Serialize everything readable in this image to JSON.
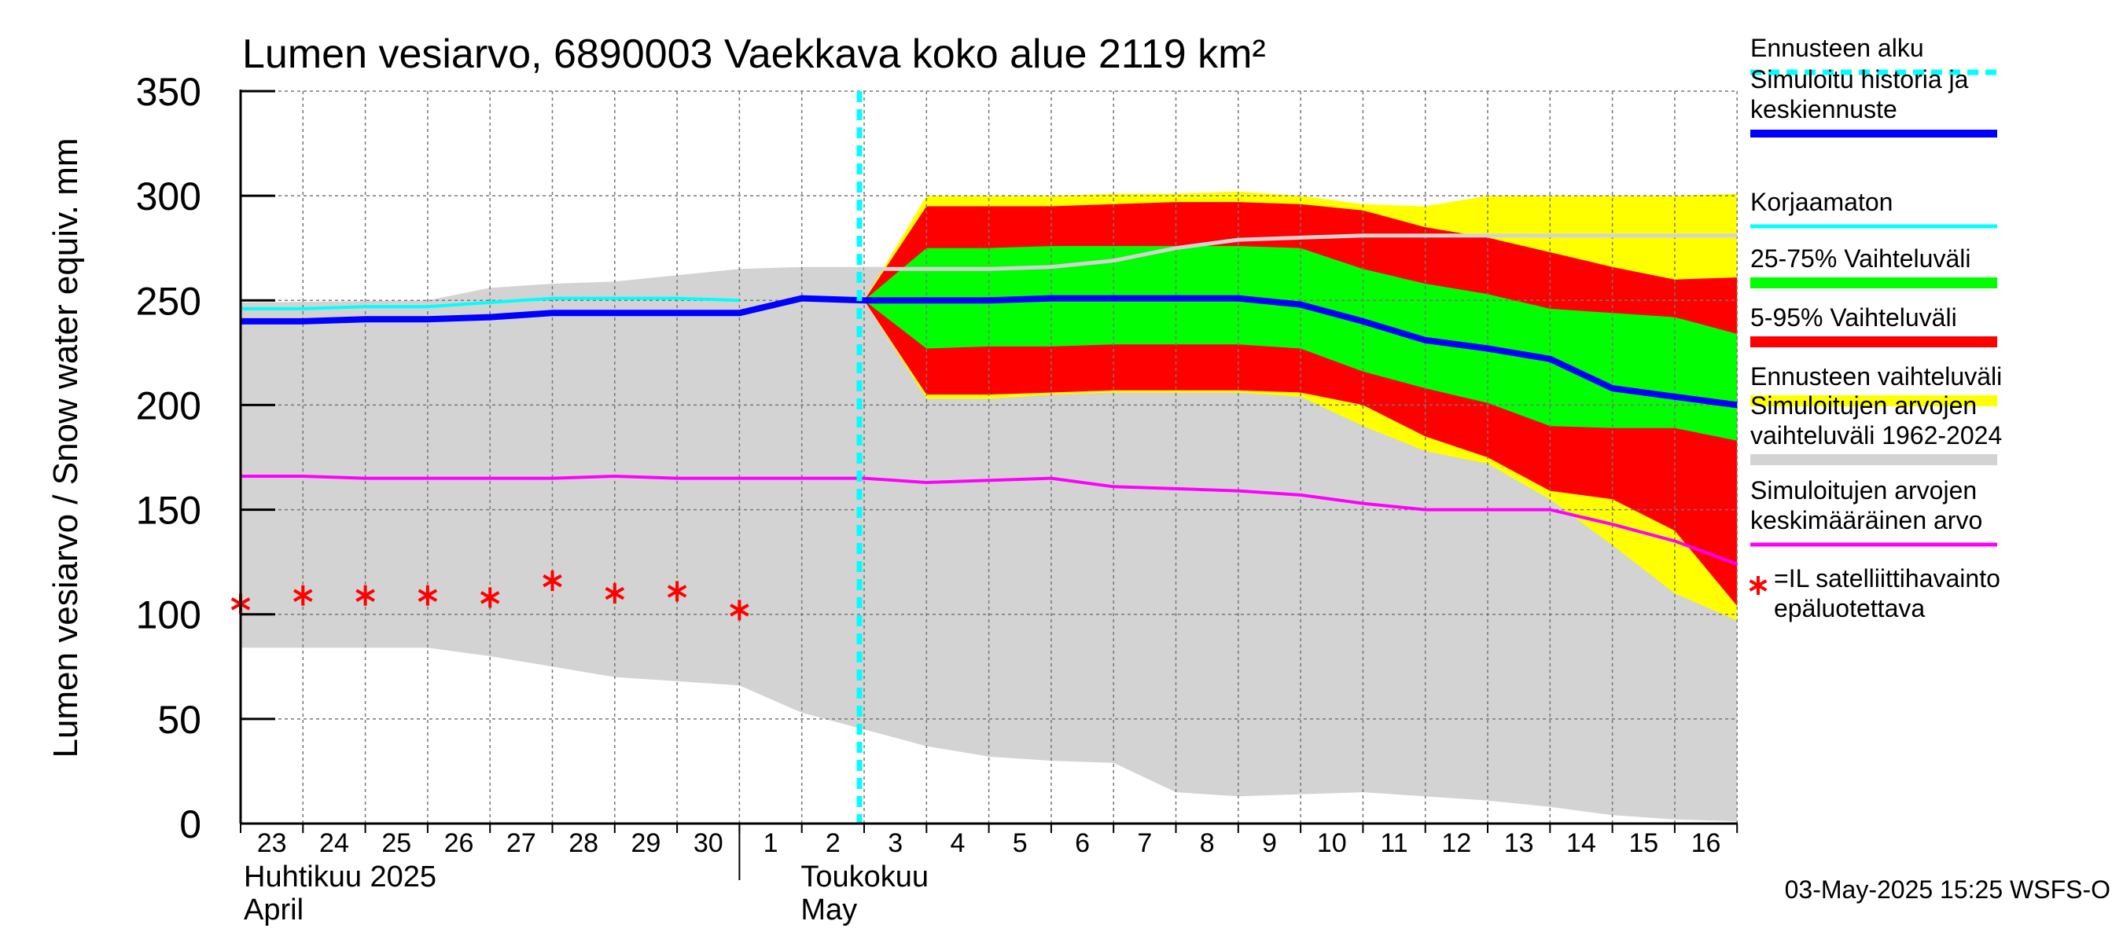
{
  "chart_data": {
    "type": "area",
    "title": "Lumen vesiarvo, 6890003 Vaekkava koko alue 2119 km²",
    "ylabel": "Lumen vesiarvo / Snow water equiv.    mm",
    "ylim": [
      0,
      350
    ],
    "yticks": [
      0,
      50,
      100,
      150,
      200,
      250,
      300,
      350
    ],
    "x": [
      "2025-04-23",
      "2025-04-24",
      "2025-04-25",
      "2025-04-26",
      "2025-04-27",
      "2025-04-28",
      "2025-04-29",
      "2025-04-30",
      "2025-05-01",
      "2025-05-02",
      "2025-05-03",
      "2025-05-04",
      "2025-05-05",
      "2025-05-06",
      "2025-05-07",
      "2025-05-08",
      "2025-05-09",
      "2025-05-10",
      "2025-05-11",
      "2025-05-12",
      "2025-05-13",
      "2025-05-14",
      "2025-05-15",
      "2025-05-16",
      "2025-05-17"
    ],
    "x_tick_labels": [
      "23",
      "24",
      "25",
      "26",
      "27",
      "28",
      "29",
      "30",
      "1",
      "2",
      "3",
      "4",
      "5",
      "6",
      "7",
      "8",
      "9",
      "10",
      "11",
      "12",
      "13",
      "14",
      "15",
      "16"
    ],
    "month_labels": [
      {
        "line1": "Huhtikuu  2025",
        "line2": "April"
      },
      {
        "line1": "Toukokuu",
        "line2": "May"
      }
    ],
    "forecast_start": "2025-05-03",
    "grid": true,
    "legend_position": "right",
    "series": [
      {
        "name": "Simuloitujen arvojen vaihteluväli 1962-2024",
        "kind": "band",
        "color": "#d3d3d3",
        "x": [
          "2025-04-23",
          "2025-04-26",
          "2025-04-27",
          "2025-04-28",
          "2025-04-29",
          "2025-04-30",
          "2025-05-01",
          "2025-05-02",
          "2025-05-03",
          "2025-05-04",
          "2025-05-05",
          "2025-05-06",
          "2025-05-07",
          "2025-05-08",
          "2025-05-09",
          "2025-05-10",
          "2025-05-11",
          "2025-05-12",
          "2025-05-13",
          "2025-05-14",
          "2025-05-15",
          "2025-05-16",
          "2025-05-17"
        ],
        "low": [
          84,
          84,
          80,
          75,
          70,
          68,
          66,
          53,
          45,
          37,
          32,
          30,
          29,
          15,
          13,
          14,
          15,
          13,
          11,
          8,
          4,
          2,
          1
        ],
        "high": [
          249,
          250,
          256,
          258,
          259,
          262,
          265,
          266,
          266,
          266,
          266,
          268,
          272,
          278,
          280,
          280,
          281,
          281,
          281,
          281,
          281,
          281,
          281
        ]
      },
      {
        "name": "Ennusteen vaihteluväli",
        "kind": "band",
        "color": "#ffff00",
        "x": [
          "2025-05-03",
          "2025-05-04",
          "2025-05-05",
          "2025-05-06",
          "2025-05-07",
          "2025-05-08",
          "2025-05-09",
          "2025-05-10",
          "2025-05-11",
          "2025-05-12",
          "2025-05-13",
          "2025-05-14",
          "2025-05-15",
          "2025-05-16",
          "2025-05-17"
        ],
        "low": [
          250,
          203,
          203,
          205,
          206,
          206,
          206,
          204,
          190,
          178,
          172,
          155,
          133,
          110,
          97
        ],
        "high": [
          250,
          300,
          300,
          300,
          301,
          301,
          302,
          300,
          296,
          295,
          300,
          300,
          300,
          300,
          301
        ]
      },
      {
        "name": "5-95% Vaihteluväli",
        "kind": "band",
        "color": "#ff0000",
        "x": [
          "2025-05-03",
          "2025-05-04",
          "2025-05-05",
          "2025-05-06",
          "2025-05-07",
          "2025-05-08",
          "2025-05-09",
          "2025-05-10",
          "2025-05-11",
          "2025-05-12",
          "2025-05-13",
          "2025-05-14",
          "2025-05-15",
          "2025-05-16",
          "2025-05-17"
        ],
        "low": [
          250,
          205,
          205,
          206,
          207,
          207,
          207,
          206,
          200,
          185,
          175,
          159,
          155,
          140,
          104
        ],
        "high": [
          250,
          295,
          295,
          295,
          296,
          297,
          297,
          296,
          293,
          285,
          280,
          273,
          266,
          260,
          261
        ]
      },
      {
        "name": "25-75% Vaihteluväli",
        "kind": "band",
        "color": "#00ff00",
        "x": [
          "2025-05-03",
          "2025-05-04",
          "2025-05-05",
          "2025-05-06",
          "2025-05-07",
          "2025-05-08",
          "2025-05-09",
          "2025-05-10",
          "2025-05-11",
          "2025-05-12",
          "2025-05-13",
          "2025-05-14",
          "2025-05-15",
          "2025-05-16",
          "2025-05-17"
        ],
        "low": [
          250,
          227,
          228,
          228,
          229,
          229,
          229,
          227,
          216,
          208,
          201,
          190,
          189,
          189,
          183
        ],
        "high": [
          250,
          275,
          275,
          276,
          276,
          276,
          276,
          275,
          265,
          258,
          253,
          246,
          244,
          242,
          234
        ]
      },
      {
        "name": "Simuloitujen arvojen keskimääräinen arvo",
        "kind": "line",
        "color": "#ff00ff",
        "width": 4,
        "x": [
          "2025-04-23",
          "2025-04-24",
          "2025-04-25",
          "2025-04-26",
          "2025-04-27",
          "2025-04-28",
          "2025-04-29",
          "2025-04-30",
          "2025-05-01",
          "2025-05-02",
          "2025-05-03",
          "2025-05-04",
          "2025-05-05",
          "2025-05-06",
          "2025-05-07",
          "2025-05-08",
          "2025-05-09",
          "2025-05-10",
          "2025-05-11",
          "2025-05-12",
          "2025-05-13",
          "2025-05-14",
          "2025-05-15",
          "2025-05-16",
          "2025-05-17"
        ],
        "y": [
          166,
          166,
          165,
          165,
          165,
          165,
          166,
          165,
          165,
          165,
          165,
          163,
          164,
          165,
          161,
          160,
          159,
          157,
          153,
          150,
          150,
          150,
          143,
          135,
          124
        ]
      },
      {
        "name": "Korjaamaton",
        "kind": "line",
        "color": "#00ffff",
        "width": 4,
        "x": [
          "2025-04-23",
          "2025-04-24",
          "2025-04-25",
          "2025-04-26",
          "2025-04-27",
          "2025-04-28",
          "2025-04-29",
          "2025-04-30",
          "2025-05-01"
        ],
        "y": [
          246,
          246,
          247,
          247,
          249,
          251,
          251,
          251,
          250
        ]
      },
      {
        "name": "",
        "kind": "line",
        "color": "#d3d3d3",
        "width": 5,
        "x": [
          "2025-05-03",
          "2025-05-04",
          "2025-05-05",
          "2025-05-06",
          "2025-05-07",
          "2025-05-08",
          "2025-05-09",
          "2025-05-10",
          "2025-05-11",
          "2025-05-12",
          "2025-05-13",
          "2025-05-14",
          "2025-05-15",
          "2025-05-16",
          "2025-05-17"
        ],
        "y": [
          265,
          265,
          265,
          266,
          269,
          275,
          279,
          280,
          281,
          281,
          281,
          281,
          281,
          281,
          281
        ]
      },
      {
        "name": "Simuloitu historia ja keskiennuste",
        "kind": "line",
        "color": "#0000ff",
        "width": 8,
        "x": [
          "2025-04-23",
          "2025-04-24",
          "2025-04-25",
          "2025-04-26",
          "2025-04-27",
          "2025-04-28",
          "2025-04-29",
          "2025-04-30",
          "2025-05-01",
          "2025-05-02",
          "2025-05-03",
          "2025-05-04",
          "2025-05-05",
          "2025-05-06",
          "2025-05-07",
          "2025-05-08",
          "2025-05-09",
          "2025-05-10",
          "2025-05-11",
          "2025-05-12",
          "2025-05-13",
          "2025-05-14",
          "2025-05-15",
          "2025-05-16",
          "2025-05-17"
        ],
        "y": [
          240,
          240,
          241,
          241,
          242,
          244,
          244,
          244,
          244,
          251,
          250,
          250,
          250,
          251,
          251,
          251,
          251,
          248,
          240,
          231,
          227,
          222,
          208,
          204,
          200
        ]
      },
      {
        "name": "=IL satelliittihavainto epäluotettava",
        "kind": "scatter",
        "marker": "asterisk",
        "color": "#ff0000",
        "x": [
          "2025-04-23",
          "2025-04-24",
          "2025-04-25",
          "2025-04-26",
          "2025-04-27",
          "2025-04-28",
          "2025-04-29",
          "2025-04-30",
          "2025-05-01"
        ],
        "y": [
          105,
          109,
          109,
          109,
          108,
          116,
          110,
          111,
          102
        ]
      }
    ]
  },
  "legend": [
    {
      "label": "Ennusteen alku",
      "color": "#00ffff",
      "style": "dashed"
    },
    {
      "label": "Simuloitu historia ja keskiennuste",
      "color": "#0000ff",
      "style": "thick"
    },
    {
      "label": "Korjaamaton",
      "color": "#00ffff",
      "style": "line"
    },
    {
      "label": "25-75% Vaihteluväli",
      "color": "#00ff00",
      "style": "band"
    },
    {
      "label": "5-95% Vaihteluväli",
      "color": "#ff0000",
      "style": "band"
    },
    {
      "label": "Ennusteen vaihteluväli",
      "color": "#ffff00",
      "style": "band"
    },
    {
      "label": "Simuloitujen arvojen vaihteluväli 1962-2024",
      "color": "#d3d3d3",
      "style": "band"
    },
    {
      "label": "Simuloitujen arvojen keskimääräinen arvo",
      "color": "#ff00ff",
      "style": "line"
    },
    {
      "label": "=IL satelliittihavainto epäluotettava",
      "color": "#ff0000",
      "style": "asterisk"
    }
  ],
  "footer": "03-May-2025 15:25 WSFS-O"
}
